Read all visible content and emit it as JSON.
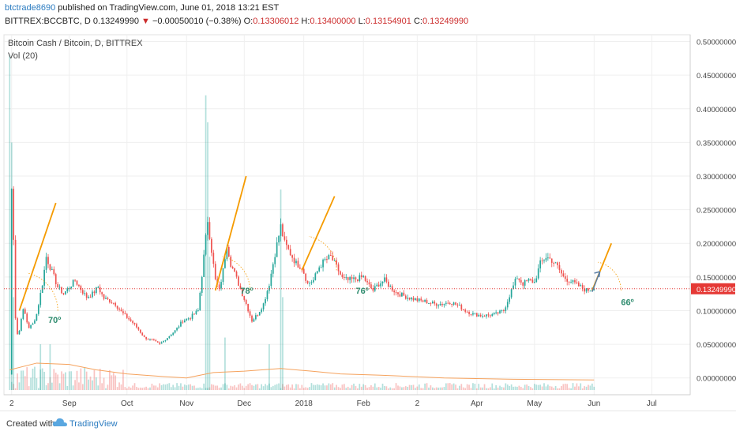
{
  "header": {
    "username": "btctrade8690",
    "published_text": "published on TradingView.com, June 01, 2018 13:21 EST",
    "symbol": "BITTREX:BCCBTC, D",
    "price": "0.13249990",
    "change_arrow": "▼",
    "change": "−0.00050010 (−0.38%)",
    "open_label": "O:",
    "open": "0.13306012",
    "high_label": "H:",
    "high": "0.13400000",
    "low_label": "L:",
    "low": "0.13154901",
    "close_label": "C:",
    "close": "0.13249990"
  },
  "legend": {
    "title": "Bitcoin Cash / Bitcoin, D, BITTREX",
    "volume": "Vol (20)"
  },
  "footer": {
    "created_with": "Created with",
    "brand": "TradingView"
  },
  "colors": {
    "up": "#26a69a",
    "down": "#ef5350",
    "trendline": "#f59b00",
    "current_price": "#e53935",
    "arrow": "#5b7fa6",
    "angle_text": "#2e8b6e"
  },
  "chart_data": {
    "type": "candlestick",
    "y_axis": {
      "ticks": [
        0.5,
        0.45,
        0.4,
        0.35,
        0.3,
        0.25,
        0.2,
        0.15,
        0.1,
        0.05,
        0.0
      ],
      "tick_labels": [
        "0.50000000",
        "0.45000000",
        "0.40000000",
        "0.35000000",
        "0.30000000",
        "0.25000000",
        "0.20000000",
        "0.15000000",
        "0.10000000",
        "0.05000000",
        "0.00000000"
      ],
      "range": [
        -0.025,
        0.51
      ],
      "position": "right"
    },
    "x_axis": {
      "ticks": [
        {
          "label": "2",
          "date": "2017-08-02"
        },
        {
          "label": "Sep",
          "date": "2017-09-01"
        },
        {
          "label": "Oct",
          "date": "2017-10-01"
        },
        {
          "label": "Nov",
          "date": "2017-11-01"
        },
        {
          "label": "Dec",
          "date": "2017-12-01"
        },
        {
          "label": "2018",
          "date": "2018-01-01"
        },
        {
          "label": "Feb",
          "date": "2018-02-01"
        },
        {
          "label": "2",
          "date": "2018-03-01"
        },
        {
          "label": "Apr",
          "date": "2018-04-01"
        },
        {
          "label": "May",
          "date": "2018-05-01"
        },
        {
          "label": "Jun",
          "date": "2018-06-01"
        },
        {
          "label": "Jul",
          "date": "2018-07-01"
        }
      ],
      "range": [
        "2017-07-29",
        "2018-07-21"
      ]
    },
    "grid": true,
    "current_price": {
      "value": 0.1325,
      "label": "0.13249990"
    },
    "price_path": [
      [
        "2017-08-01",
        0.005
      ],
      [
        "2017-08-02",
        0.28
      ],
      [
        "2017-08-03",
        0.21
      ],
      [
        "2017-08-04",
        0.09
      ],
      [
        "2017-08-05",
        0.065
      ],
      [
        "2017-08-06",
        0.07
      ],
      [
        "2017-08-07",
        0.09
      ],
      [
        "2017-08-08",
        0.1
      ],
      [
        "2017-08-09",
        0.095
      ],
      [
        "2017-08-10",
        0.083
      ],
      [
        "2017-08-11",
        0.075
      ],
      [
        "2017-08-13",
        0.08
      ],
      [
        "2017-08-15",
        0.095
      ],
      [
        "2017-08-18",
        0.14
      ],
      [
        "2017-08-20",
        0.18
      ],
      [
        "2017-08-22",
        0.165
      ],
      [
        "2017-08-24",
        0.15
      ],
      [
        "2017-08-26",
        0.135
      ],
      [
        "2017-08-29",
        0.125
      ],
      [
        "2017-09-01",
        0.135
      ],
      [
        "2017-09-04",
        0.145
      ],
      [
        "2017-09-07",
        0.132
      ],
      [
        "2017-09-10",
        0.12
      ],
      [
        "2017-09-13",
        0.125
      ],
      [
        "2017-09-16",
        0.135
      ],
      [
        "2017-09-19",
        0.118
      ],
      [
        "2017-09-22",
        0.115
      ],
      [
        "2017-09-25",
        0.11
      ],
      [
        "2017-09-28",
        0.098
      ],
      [
        "2017-10-01",
        0.09
      ],
      [
        "2017-10-04",
        0.082
      ],
      [
        "2017-10-07",
        0.072
      ],
      [
        "2017-10-10",
        0.06
      ],
      [
        "2017-10-14",
        0.056
      ],
      [
        "2017-10-18",
        0.05
      ],
      [
        "2017-10-22",
        0.06
      ],
      [
        "2017-10-26",
        0.07
      ],
      [
        "2017-10-30",
        0.085
      ],
      [
        "2017-11-03",
        0.09
      ],
      [
        "2017-11-07",
        0.1
      ],
      [
        "2017-11-10",
        0.18
      ],
      [
        "2017-11-12",
        0.235
      ],
      [
        "2017-11-14",
        0.19
      ],
      [
        "2017-11-16",
        0.145
      ],
      [
        "2017-11-18",
        0.13
      ],
      [
        "2017-11-20",
        0.16
      ],
      [
        "2017-11-22",
        0.2
      ],
      [
        "2017-11-24",
        0.17
      ],
      [
        "2017-11-26",
        0.155
      ],
      [
        "2017-11-28",
        0.14
      ],
      [
        "2017-11-30",
        0.125
      ],
      [
        "2017-12-02",
        0.11
      ],
      [
        "2017-12-05",
        0.085
      ],
      [
        "2017-12-08",
        0.095
      ],
      [
        "2017-12-11",
        0.11
      ],
      [
        "2017-12-14",
        0.14
      ],
      [
        "2017-12-17",
        0.185
      ],
      [
        "2017-12-20",
        0.225
      ],
      [
        "2017-12-22",
        0.2
      ],
      [
        "2017-12-25",
        0.185
      ],
      [
        "2017-12-28",
        0.17
      ],
      [
        "2017-12-31",
        0.165
      ],
      [
        "2018-01-03",
        0.14
      ],
      [
        "2018-01-06",
        0.145
      ],
      [
        "2018-01-09",
        0.165
      ],
      [
        "2018-01-12",
        0.175
      ],
      [
        "2018-01-15",
        0.18
      ],
      [
        "2018-01-18",
        0.165
      ],
      [
        "2018-01-21",
        0.148
      ],
      [
        "2018-01-24",
        0.145
      ],
      [
        "2018-01-28",
        0.147
      ],
      [
        "2018-02-01",
        0.15
      ],
      [
        "2018-02-03",
        0.14
      ],
      [
        "2018-02-06",
        0.13
      ],
      [
        "2018-02-09",
        0.14
      ],
      [
        "2018-02-12",
        0.145
      ],
      [
        "2018-02-15",
        0.135
      ],
      [
        "2018-02-18",
        0.127
      ],
      [
        "2018-02-22",
        0.122
      ],
      [
        "2018-02-26",
        0.118
      ],
      [
        "2018-03-02",
        0.115
      ],
      [
        "2018-03-06",
        0.113
      ],
      [
        "2018-03-10",
        0.11
      ],
      [
        "2018-03-14",
        0.11
      ],
      [
        "2018-03-18",
        0.113
      ],
      [
        "2018-03-22",
        0.108
      ],
      [
        "2018-03-26",
        0.1
      ],
      [
        "2018-03-30",
        0.095
      ],
      [
        "2018-04-03",
        0.093
      ],
      [
        "2018-04-07",
        0.093
      ],
      [
        "2018-04-11",
        0.095
      ],
      [
        "2018-04-15",
        0.1
      ],
      [
        "2018-04-19",
        0.13
      ],
      [
        "2018-04-22",
        0.15
      ],
      [
        "2018-04-25",
        0.14
      ],
      [
        "2018-04-28",
        0.145
      ],
      [
        "2018-05-01",
        0.142
      ],
      [
        "2018-05-04",
        0.17
      ],
      [
        "2018-05-07",
        0.18
      ],
      [
        "2018-05-10",
        0.175
      ],
      [
        "2018-05-13",
        0.165
      ],
      [
        "2018-05-16",
        0.15
      ],
      [
        "2018-05-19",
        0.145
      ],
      [
        "2018-05-22",
        0.14
      ],
      [
        "2018-05-25",
        0.135
      ],
      [
        "2018-05-28",
        0.13
      ],
      [
        "2018-05-31",
        0.1325
      ],
      [
        "2018-06-01",
        0.1325
      ]
    ],
    "volume_spikes": [
      [
        "2017-08-01",
        0.48
      ],
      [
        "2017-08-02",
        0.35
      ],
      [
        "2017-08-03",
        0.12
      ],
      [
        "2017-08-17",
        0.05
      ],
      [
        "2017-08-22",
        0.05
      ],
      [
        "2017-11-11",
        0.42
      ],
      [
        "2017-11-12",
        0.38
      ],
      [
        "2017-11-13",
        0.18
      ],
      [
        "2017-11-21",
        0.06
      ],
      [
        "2017-12-20",
        0.28
      ],
      [
        "2017-12-21",
        0.12
      ],
      [
        "2017-12-14",
        0.05
      ]
    ],
    "volume_ma_path": [
      [
        "2017-08-01",
        0.012
      ],
      [
        "2017-08-15",
        0.022
      ],
      [
        "2017-09-01",
        0.02
      ],
      [
        "2017-09-15",
        0.012
      ],
      [
        "2017-10-01",
        0.006
      ],
      [
        "2017-10-20",
        0.002
      ],
      [
        "2017-11-01",
        0.0
      ],
      [
        "2017-11-15",
        0.008
      ],
      [
        "2017-12-01",
        0.01
      ],
      [
        "2017-12-20",
        0.014
      ],
      [
        "2018-01-05",
        0.01
      ],
      [
        "2018-01-20",
        0.006
      ],
      [
        "2018-02-10",
        0.004
      ],
      [
        "2018-03-15",
        0.0
      ],
      [
        "2018-04-20",
        -0.002
      ],
      [
        "2018-06-01",
        -0.003
      ]
    ],
    "annotations": {
      "trendlines": [
        {
          "from": [
            "2017-08-06",
            0.1
          ],
          "to": [
            "2017-08-25",
            0.26
          ]
        },
        {
          "from": [
            "2017-11-16",
            0.13
          ],
          "to": [
            "2017-12-02",
            0.3
          ]
        },
        {
          "from": [
            "2017-12-31",
            0.16
          ],
          "to": [
            "2018-01-17",
            0.27
          ]
        },
        {
          "from": [
            "2018-05-31",
            0.13
          ],
          "to": [
            "2018-06-10",
            0.2
          ]
        }
      ],
      "arrow": {
        "from": [
          "2018-05-31",
          0.128
        ],
        "to": [
          "2018-06-04",
          0.158
        ]
      },
      "arcs": [
        {
          "center": [
            "2017-08-06",
            0.1
          ],
          "radius_days": 20
        },
        {
          "center": [
            "2017-11-16",
            0.13
          ],
          "radius_days": 18
        },
        {
          "center": [
            "2017-12-31",
            0.16
          ],
          "radius_days": 18
        },
        {
          "center": [
            "2018-05-31",
            0.13
          ],
          "radius_days": 15
        }
      ],
      "angle_labels": [
        {
          "text": "70º",
          "at": [
            "2017-08-21",
            0.082
          ]
        },
        {
          "text": "78º",
          "at": [
            "2017-11-29",
            0.125
          ]
        },
        {
          "text": "76º",
          "at": [
            "2018-01-28",
            0.125
          ]
        },
        {
          "text": "66º",
          "at": [
            "2018-06-15",
            0.108
          ]
        }
      ]
    }
  }
}
